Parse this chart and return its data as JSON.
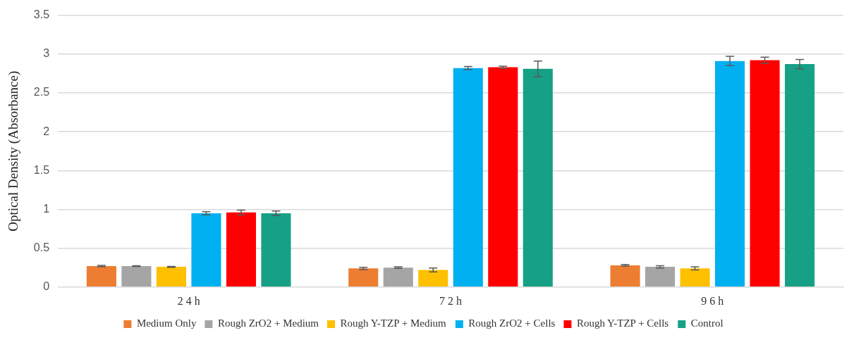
{
  "chart_data": {
    "type": "bar",
    "ylabel": "Optical Density (Absorbance)",
    "categories": [
      "2 4 h",
      "7 2 h",
      "9 6 h"
    ],
    "series": [
      {
        "name": "Medium Only",
        "color": "#ed7d31",
        "values": [
          0.27,
          0.24,
          0.28
        ],
        "errors": [
          0.01,
          0.015,
          0.01
        ]
      },
      {
        "name": "Rough ZrO2 + Medium",
        "color": "#a5a5a5",
        "values": [
          0.27,
          0.25,
          0.26
        ],
        "errors": [
          0.005,
          0.01,
          0.015
        ]
      },
      {
        "name": "Rough Y-TZP + Medium",
        "color": "#ffc000",
        "values": [
          0.26,
          0.22,
          0.24
        ],
        "errors": [
          0.005,
          0.025,
          0.02
        ]
      },
      {
        "name": "Rough ZrO2 + Cells",
        "color": "#00b0f0",
        "values": [
          0.95,
          2.82,
          2.91
        ],
        "errors": [
          0.02,
          0.02,
          0.06
        ]
      },
      {
        "name": "Rough Y-TZP + Cells",
        "color": "#ff0000",
        "values": [
          0.96,
          2.83,
          2.92
        ],
        "errors": [
          0.03,
          0.015,
          0.04
        ]
      },
      {
        "name": "Control",
        "color": "#16a085",
        "values": [
          0.95,
          2.81,
          2.87
        ],
        "errors": [
          0.03,
          0.1,
          0.06
        ]
      }
    ],
    "ylim": [
      0,
      3.5
    ],
    "yticks": [
      0,
      0.5,
      1,
      1.5,
      2,
      2.5,
      3,
      3.5
    ],
    "grid": "y",
    "legend": "bottom"
  }
}
